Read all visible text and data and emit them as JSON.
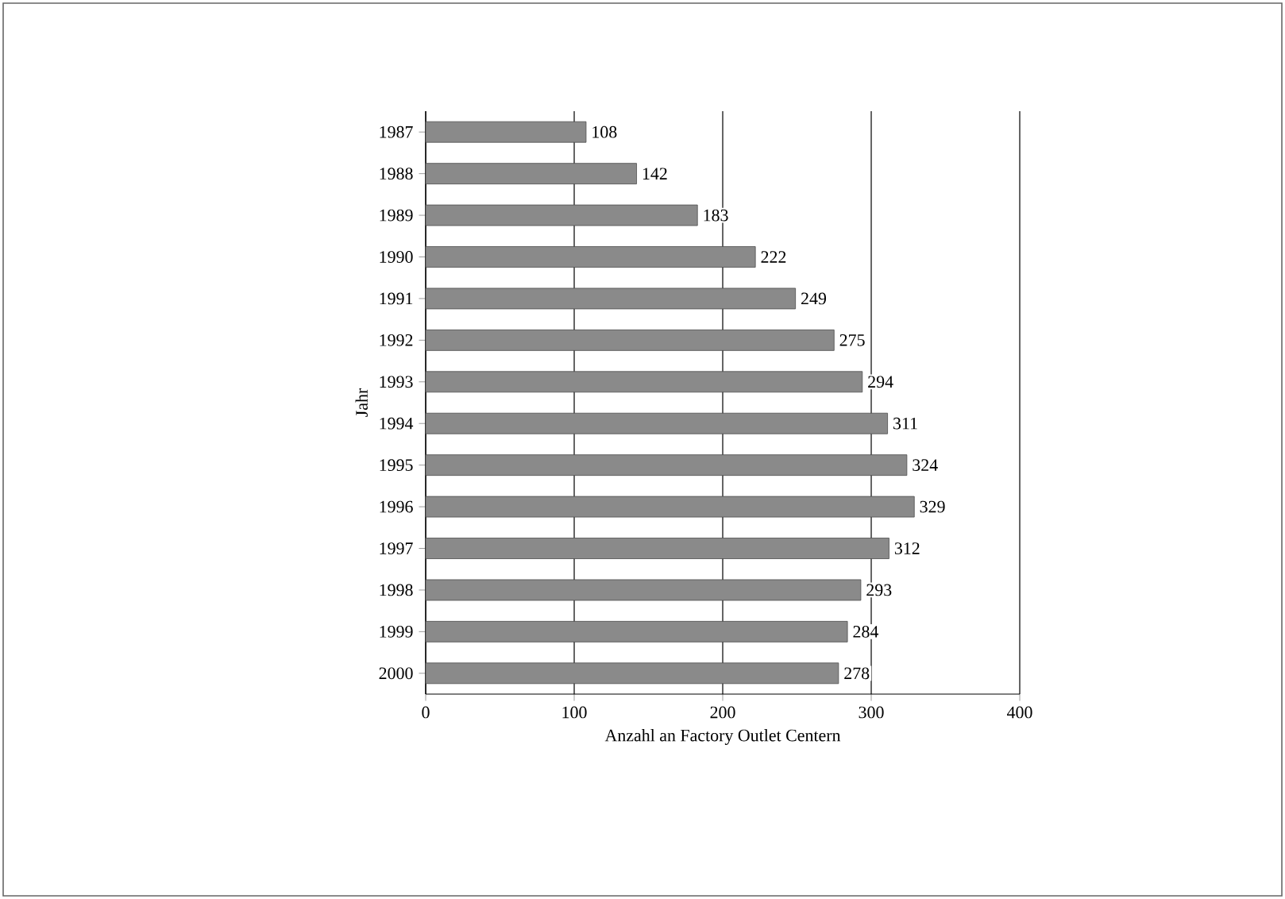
{
  "chart_data": {
    "type": "bar",
    "orientation": "horizontal",
    "xlabel": "Anzahl an Factory Outlet Centern",
    "ylabel": "Jahr",
    "categories": [
      "1987",
      "1988",
      "1989",
      "1990",
      "1991",
      "1992",
      "1993",
      "1994",
      "1995",
      "1996",
      "1997",
      "1998",
      "1999",
      "2000"
    ],
    "values": [
      108,
      142,
      183,
      222,
      249,
      275,
      294,
      311,
      324,
      329,
      312,
      293,
      284,
      278
    ],
    "color": "#8a8a8a",
    "xlim": [
      0,
      400
    ],
    "xticks": [
      0,
      100,
      200,
      300,
      400
    ],
    "grid": "x",
    "data_labels": true
  }
}
